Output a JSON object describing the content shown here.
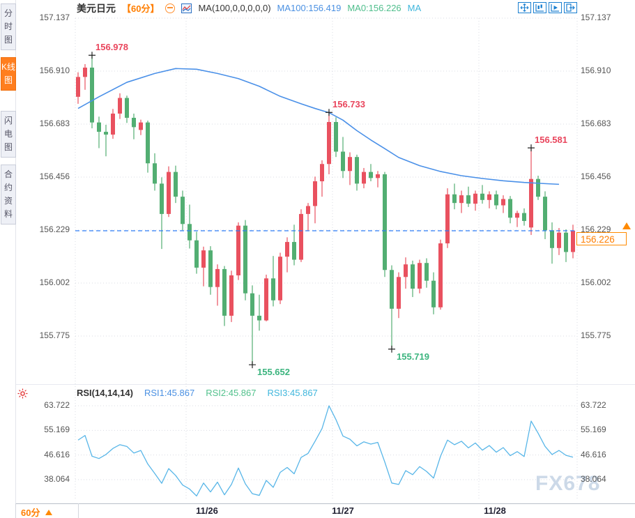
{
  "header": {
    "symbol": "美元日元",
    "period": "【60分】",
    "ma_settings": "MA(100,0,0,0,0,0)",
    "ma100": "MA100:156.419",
    "ma0": "MA0:156.226",
    "ma_extra": "MA"
  },
  "sidebar": {
    "tabs": [
      {
        "label": "分时图",
        "active": false
      },
      {
        "label": "K线图",
        "active": true
      },
      {
        "label": "闪电图",
        "active": false
      },
      {
        "label": "合约资料",
        "active": false
      }
    ]
  },
  "rsi_header": {
    "params": "RSI(14,14,14)",
    "rsi1": "RSI1:45.867",
    "rsi2": "RSI2:45.867",
    "rsi3": "RSI3:45.867"
  },
  "bottom_bar": {
    "period": "60分"
  },
  "current_price": {
    "value": "156.226"
  },
  "watermark": "FX678",
  "colors": {
    "up": "#e9515f",
    "down": "#52ae72",
    "up_text": "#e9455c",
    "down_text": "#3bb47e",
    "ma_line": "#4a90e8",
    "rsi_line": "#58b6e8",
    "last_price_line": "#2f7df6",
    "accent_orange": "#ff7e00",
    "grid": "#d9dbe3",
    "marker": "#222222"
  },
  "chart_data": {
    "type": "candlestick",
    "title": "美元日元 60分",
    "main": {
      "y_labels": [
        157.137,
        156.91,
        156.683,
        156.456,
        156.229,
        156.002,
        155.775
      ],
      "last_price": 156.226,
      "ma100_last": 156.419,
      "candles": [
        [
          156.8,
          156.905,
          156.77,
          156.885
        ],
        [
          156.885,
          156.94,
          156.83,
          156.925
        ],
        [
          156.925,
          156.978,
          156.665,
          156.69
        ],
        [
          156.69,
          156.715,
          156.58,
          156.65
        ],
        [
          156.65,
          156.68,
          156.545,
          156.638
        ],
        [
          156.638,
          156.748,
          156.62,
          156.728
        ],
        [
          156.728,
          156.815,
          156.705,
          156.795
        ],
        [
          156.795,
          156.805,
          156.688,
          156.71
        ],
        [
          156.71,
          156.728,
          156.618,
          156.67
        ],
        [
          156.658,
          156.702,
          156.636,
          156.69
        ],
        [
          156.69,
          156.698,
          156.475,
          156.515
        ],
        [
          156.515,
          156.558,
          156.398,
          156.428
        ],
        [
          156.428,
          156.455,
          156.148,
          156.298
        ],
        [
          156.298,
          156.502,
          156.285,
          156.478
        ],
        [
          156.478,
          156.505,
          156.345,
          156.372
        ],
        [
          156.372,
          156.398,
          156.228,
          156.255
        ],
        [
          156.255,
          156.338,
          156.15,
          156.185
        ],
        [
          156.185,
          156.222,
          156.042,
          156.068
        ],
        [
          156.068,
          156.158,
          155.988,
          156.142
        ],
        [
          156.142,
          156.16,
          155.952,
          155.985
        ],
        [
          155.985,
          156.082,
          155.905,
          156.062
        ],
        [
          156.062,
          156.075,
          155.818,
          155.862
        ],
        [
          155.862,
          156.055,
          155.835,
          156.035
        ],
        [
          156.035,
          156.262,
          156.015,
          156.248
        ],
        [
          156.248,
          156.272,
          155.928,
          155.958
        ],
        [
          155.958,
          155.992,
          155.652,
          155.862
        ],
        [
          155.862,
          155.952,
          155.798,
          155.842
        ],
        [
          155.842,
          156.038,
          155.838,
          156.022
        ],
        [
          156.022,
          156.118,
          155.902,
          155.928
        ],
        [
          155.928,
          156.132,
          155.912,
          156.115
        ],
        [
          156.115,
          156.198,
          156.048,
          156.178
        ],
        [
          156.178,
          156.252,
          156.078,
          156.102
        ],
        [
          156.102,
          156.318,
          156.092,
          156.298
        ],
        [
          156.298,
          156.345,
          156.228,
          156.332
        ],
        [
          156.332,
          156.458,
          156.258,
          156.438
        ],
        [
          156.438,
          156.528,
          156.372,
          156.512
        ],
        [
          156.512,
          156.733,
          156.468,
          156.692
        ],
        [
          156.692,
          156.712,
          156.542,
          156.565
        ],
        [
          156.565,
          156.628,
          156.452,
          156.482
        ],
        [
          156.482,
          156.562,
          156.422,
          156.542
        ],
        [
          156.542,
          156.552,
          156.398,
          156.428
        ],
        [
          156.428,
          156.495,
          156.408,
          156.478
        ],
        [
          156.478,
          156.512,
          156.438,
          156.452
        ],
        [
          156.452,
          156.482,
          156.412,
          156.468
        ],
        [
          156.468,
          156.478,
          156.028,
          156.058
        ],
        [
          156.058,
          156.078,
          155.719,
          155.892
        ],
        [
          155.892,
          156.048,
          155.852,
          156.028
        ],
        [
          156.028,
          156.112,
          155.978,
          156.082
        ],
        [
          156.082,
          156.098,
          155.942,
          155.978
        ],
        [
          155.978,
          156.102,
          155.958,
          156.088
        ],
        [
          156.088,
          156.108,
          155.982,
          156.012
        ],
        [
          156.012,
          156.048,
          155.868,
          155.898
        ],
        [
          155.898,
          156.188,
          155.888,
          156.172
        ],
        [
          156.172,
          156.408,
          156.152,
          156.382
        ],
        [
          156.382,
          156.428,
          156.318,
          156.345
        ],
        [
          156.345,
          156.398,
          156.302,
          156.378
        ],
        [
          156.378,
          156.415,
          156.328,
          156.342
        ],
        [
          156.342,
          156.398,
          156.312,
          156.385
        ],
        [
          156.385,
          156.422,
          156.342,
          156.358
        ],
        [
          156.358,
          156.395,
          156.322,
          156.382
        ],
        [
          156.382,
          156.398,
          156.318,
          156.335
        ],
        [
          156.335,
          156.378,
          156.302,
          156.362
        ],
        [
          156.362,
          156.375,
          156.258,
          156.282
        ],
        [
          156.282,
          156.312,
          156.242,
          156.302
        ],
        [
          156.302,
          156.322,
          156.248,
          156.268
        ],
        [
          156.24,
          156.581,
          156.208,
          156.448
        ],
        [
          156.448,
          156.462,
          156.358,
          156.372
        ],
        [
          156.372,
          156.395,
          156.19,
          156.228
        ],
        [
          156.228,
          156.262,
          156.085,
          156.152
        ],
        [
          156.152,
          156.238,
          156.122,
          156.218
        ],
        [
          156.218,
          156.232,
          156.092,
          156.135
        ],
        [
          156.135,
          156.252,
          156.108,
          156.226
        ]
      ],
      "ma100_points": [
        [
          1,
          156.75
        ],
        [
          4,
          156.8
        ],
        [
          8,
          156.862
        ],
        [
          12,
          156.9
        ],
        [
          15,
          156.921
        ],
        [
          18,
          156.918
        ],
        [
          21,
          156.9
        ],
        [
          24,
          156.878
        ],
        [
          27,
          156.845
        ],
        [
          30,
          156.802
        ],
        [
          33,
          156.77
        ],
        [
          35,
          156.75
        ],
        [
          37,
          156.732
        ],
        [
          39,
          156.7
        ],
        [
          41,
          156.655
        ],
        [
          43,
          156.615
        ],
        [
          45,
          156.578
        ],
        [
          47,
          156.54
        ],
        [
          50,
          156.505
        ],
        [
          53,
          156.48
        ],
        [
          56,
          156.462
        ],
        [
          59,
          156.45
        ],
        [
          62,
          156.44
        ],
        [
          65,
          156.433
        ],
        [
          68,
          156.428
        ],
        [
          70,
          156.425
        ]
      ],
      "annotations": [
        {
          "bar": 3,
          "price": 156.978,
          "text": "156.978",
          "kind": "high"
        },
        {
          "bar": 37,
          "price": 156.733,
          "text": "156.733",
          "kind": "high"
        },
        {
          "bar": 66,
          "price": 156.581,
          "text": "156.581",
          "kind": "high"
        },
        {
          "bar": 26,
          "price": 155.652,
          "text": "155.652",
          "kind": "low"
        },
        {
          "bar": 46,
          "price": 155.719,
          "text": "155.719",
          "kind": "low"
        }
      ],
      "day_boundaries": [
        16.5,
        37.5,
        58.5
      ],
      "date_ticks": [
        {
          "label": "11/26",
          "bar": 19.5
        },
        {
          "label": "11/27",
          "bar": 39
        },
        {
          "label": "11/28",
          "bar": 60.8
        }
      ]
    },
    "rsi": {
      "y_labels": [
        63.722,
        55.169,
        46.616,
        38.064
      ],
      "values": [
        51.8,
        53.4,
        46.2,
        45.4,
        46.8,
        48.9,
        50.2,
        49.6,
        47.3,
        48.2,
        43.5,
        40.2,
        36.8,
        41.9,
        39.5,
        36.2,
        34.8,
        32.4,
        36.9,
        33.8,
        37.2,
        32.8,
        36.4,
        42.1,
        36.6,
        33.2,
        32.6,
        37.8,
        35.4,
        40.6,
        42.3,
        40.1,
        45.8,
        47.2,
        51.4,
        55.8,
        63.7,
        58.9,
        53.2,
        52.1,
        49.8,
        51.2,
        50.4,
        51.0,
        44.2,
        36.9,
        36.4,
        41.2,
        39.8,
        42.6,
        40.9,
        38.6,
        46.2,
        51.8,
        50.2,
        51.4,
        49.1,
        50.8,
        48.3,
        49.9,
        47.6,
        49.2,
        46.4,
        47.8,
        46.1,
        58.4,
        54.2,
        49.6,
        46.8,
        48.2,
        46.5,
        45.867
      ]
    }
  }
}
